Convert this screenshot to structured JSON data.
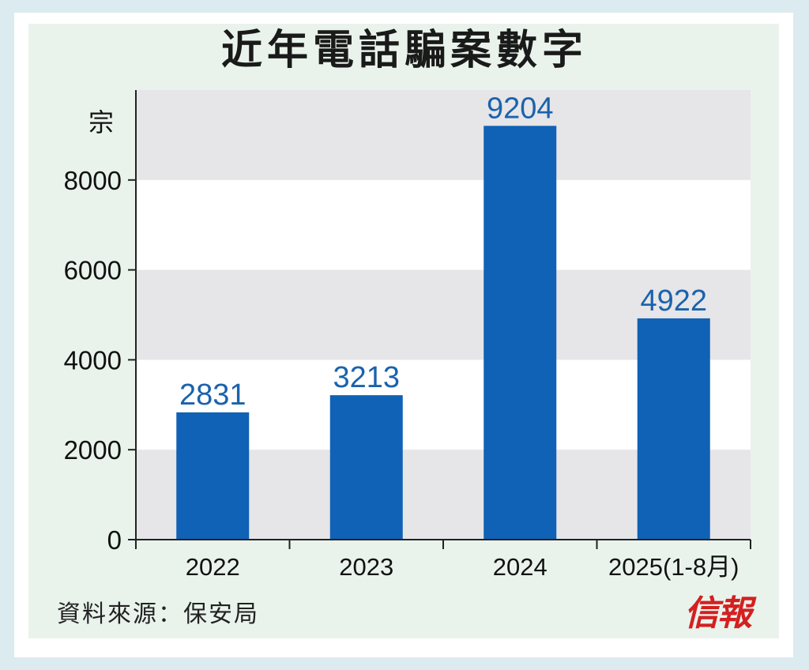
{
  "chart_data": {
    "type": "bar",
    "title": "近年電話騙案數字",
    "ylabel": "宗",
    "xlabel": "",
    "categories": [
      "2022",
      "2023",
      "2024",
      "2025(1-8月)"
    ],
    "values": [
      2831,
      3213,
      9204,
      4922
    ],
    "ylim": [
      0,
      10000
    ],
    "yticks": [
      0,
      2000,
      4000,
      6000,
      8000
    ],
    "grid": "alternating-bands",
    "bar_color": "#0f62b5",
    "label_color": "#1a63ad",
    "band_color": "#e6e5e8"
  },
  "source": "資料來源：保安局",
  "logo": "信報"
}
